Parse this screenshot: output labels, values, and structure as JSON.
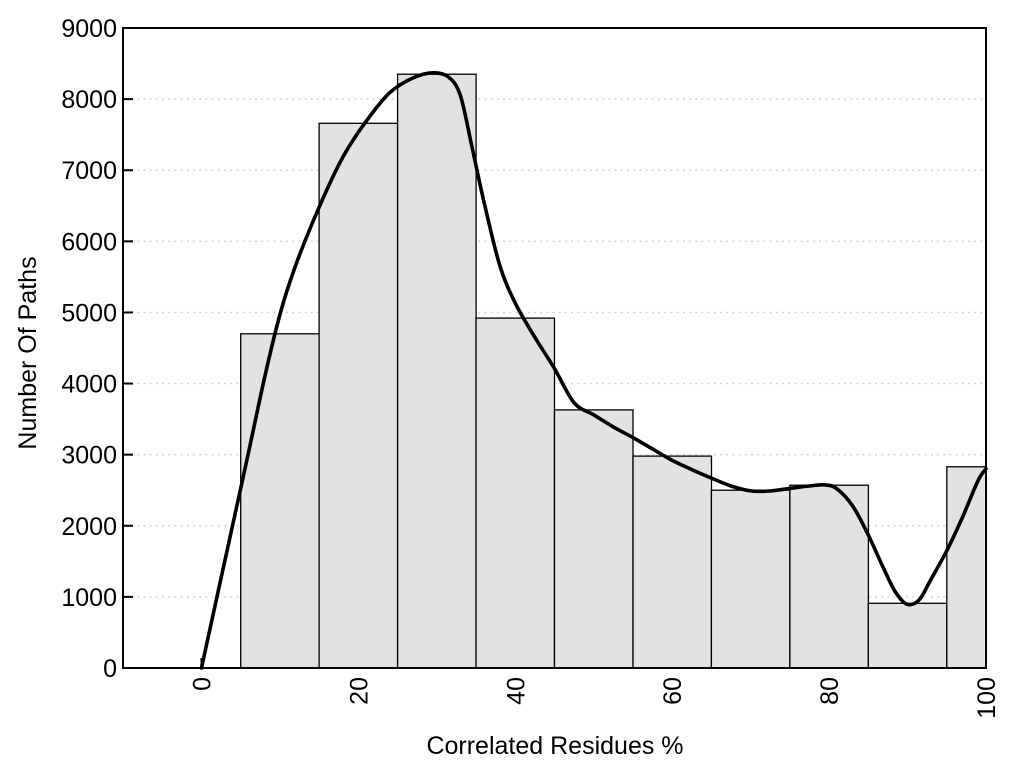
{
  "chart_data": {
    "type": "bar",
    "subtype": "histogram-with-smooth-curve",
    "title": "",
    "xlabel": "Correlated Residues %",
    "ylabel": "Number Of Paths",
    "xlim": [
      -10,
      100
    ],
    "ylim": [
      0,
      9000
    ],
    "x_ticks": [
      0,
      20,
      40,
      60,
      80,
      100
    ],
    "y_ticks": [
      0,
      1000,
      2000,
      3000,
      4000,
      5000,
      6000,
      7000,
      8000,
      9000
    ],
    "grid": {
      "horizontal": true,
      "vertical": false,
      "style": "dotted"
    },
    "legend": "none",
    "histogram": {
      "bin_start": 5,
      "bin_width": 10,
      "bin_centers": [
        10,
        20,
        30,
        40,
        50,
        60,
        70,
        80,
        90,
        100
      ],
      "bin_ranges": [
        [
          5,
          15
        ],
        [
          15,
          25
        ],
        [
          25,
          35
        ],
        [
          35,
          45
        ],
        [
          45,
          55
        ],
        [
          55,
          65
        ],
        [
          65,
          75
        ],
        [
          75,
          85
        ],
        [
          85,
          95
        ],
        [
          95,
          105
        ]
      ],
      "values": [
        4700,
        7660,
        8350,
        4920,
        3630,
        2980,
        2500,
        2570,
        910,
        2830
      ],
      "note": "last bin clipped at x=100 by plot edge"
    },
    "curve_points": [
      [
        0,
        0
      ],
      [
        2,
        1010
      ],
      [
        4,
        2020
      ],
      [
        6,
        3030
      ],
      [
        8,
        4060
      ],
      [
        10,
        4970
      ],
      [
        12,
        5660
      ],
      [
        15,
        6480
      ],
      [
        18,
        7180
      ],
      [
        21,
        7690
      ],
      [
        24,
        8090
      ],
      [
        27,
        8300
      ],
      [
        29.5,
        8370
      ],
      [
        31.5,
        8310
      ],
      [
        33,
        8050
      ],
      [
        34.5,
        7320
      ],
      [
        36,
        6560
      ],
      [
        38,
        5670
      ],
      [
        40,
        5130
      ],
      [
        42.5,
        4650
      ],
      [
        45,
        4210
      ],
      [
        47.5,
        3730
      ],
      [
        50,
        3560
      ],
      [
        52.5,
        3390
      ],
      [
        55,
        3240
      ],
      [
        57.5,
        3080
      ],
      [
        60,
        2920
      ],
      [
        62.5,
        2790
      ],
      [
        65,
        2670
      ],
      [
        67.5,
        2560
      ],
      [
        70,
        2490
      ],
      [
        72.5,
        2490
      ],
      [
        75,
        2525
      ],
      [
        77.5,
        2560
      ],
      [
        79.5,
        2575
      ],
      [
        81,
        2520
      ],
      [
        83,
        2280
      ],
      [
        85,
        1870
      ],
      [
        87,
        1390
      ],
      [
        88.5,
        1060
      ],
      [
        90,
        895
      ],
      [
        91.5,
        960
      ],
      [
        93,
        1250
      ],
      [
        95,
        1650
      ],
      [
        97,
        2120
      ],
      [
        99,
        2640
      ],
      [
        100,
        2800
      ]
    ],
    "colors": {
      "background": "#ffffff",
      "bar_fill": "#e2e2e2",
      "bar_border": "#000000",
      "curve": "#000000",
      "gridline": "#c9c9c9",
      "frame": "#000000",
      "text": "#000000"
    }
  }
}
